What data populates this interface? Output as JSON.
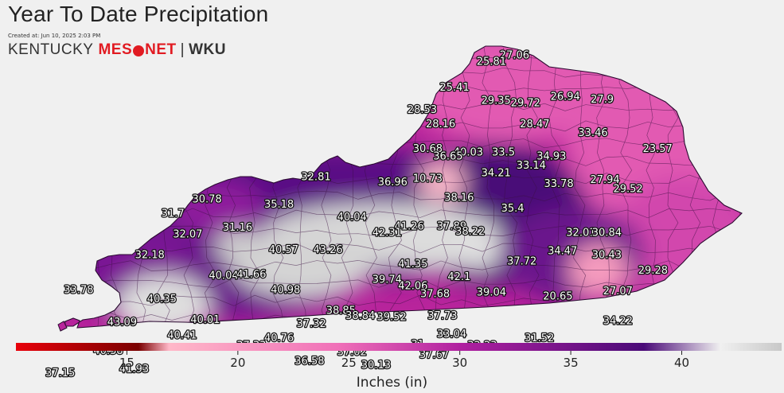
{
  "title": "Year To Date Precipitation",
  "created": "Created at: Jun 10, 2025 2:03 PM",
  "logo": {
    "kentucky": "KENTUCKY",
    "meso": "MES",
    "net": "NET",
    "separator": "|",
    "wku": "WKU"
  },
  "legend": {
    "title": "Inches (in)",
    "ticks": [
      "15",
      "20",
      "25",
      "30",
      "35",
      "40"
    ],
    "tick_values": [
      15,
      20,
      25,
      30,
      35,
      40
    ],
    "range": [
      10,
      44.5
    ],
    "colors": [
      "#e8000a",
      "#7a0000",
      "#ffb8c8",
      "#f070b8",
      "#b020a0",
      "#4a0a78",
      "#f0f0f0",
      "#c8c8c8"
    ]
  },
  "stations": [
    {
      "value": "27.06",
      "lon": -84.2,
      "lat": 39.08
    },
    {
      "value": "25.81",
      "lon": -84.45,
      "lat": 39.03
    },
    {
      "value": "25.41",
      "lon": -84.85,
      "lat": 38.83
    },
    {
      "value": "29.35",
      "lon": -84.4,
      "lat": 38.73
    },
    {
      "value": "29.72",
      "lon": -84.08,
      "lat": 38.71
    },
    {
      "value": "26.94",
      "lon": -83.65,
      "lat": 38.76
    },
    {
      "value": "27.9",
      "lon": -83.25,
      "lat": 38.74
    },
    {
      "value": "28.53",
      "lon": -85.2,
      "lat": 38.66
    },
    {
      "value": "28.16",
      "lon": -85.0,
      "lat": 38.55
    },
    {
      "value": "28.47",
      "lon": -83.98,
      "lat": 38.55
    },
    {
      "value": "33.46",
      "lon": -83.35,
      "lat": 38.48
    },
    {
      "value": "30.68",
      "lon": -85.14,
      "lat": 38.36
    },
    {
      "value": "40.03",
      "lon": -84.7,
      "lat": 38.33
    },
    {
      "value": "36.65",
      "lon": -84.92,
      "lat": 38.3
    },
    {
      "value": "33.5",
      "lon": -84.32,
      "lat": 38.33
    },
    {
      "value": "34.93",
      "lon": -83.8,
      "lat": 38.3
    },
    {
      "value": "23.57",
      "lon": -82.65,
      "lat": 38.36
    },
    {
      "value": "32.81",
      "lon": -86.35,
      "lat": 38.14
    },
    {
      "value": "36.96",
      "lon": -85.52,
      "lat": 38.1
    },
    {
      "value": "10.73",
      "lon": -85.14,
      "lat": 38.13
    },
    {
      "value": "34.21",
      "lon": -84.4,
      "lat": 38.17
    },
    {
      "value": "33.14",
      "lon": -84.02,
      "lat": 38.23
    },
    {
      "value": "33.78",
      "lon": -83.72,
      "lat": 38.09
    },
    {
      "value": "27.94",
      "lon": -83.22,
      "lat": 38.12
    },
    {
      "value": "29.52",
      "lon": -82.97,
      "lat": 38.05
    },
    {
      "value": "30.78",
      "lon": -87.53,
      "lat": 37.97
    },
    {
      "value": "35.18",
      "lon": -86.75,
      "lat": 37.93
    },
    {
      "value": "38.16",
      "lon": -84.8,
      "lat": 37.98
    },
    {
      "value": "35.4",
      "lon": -84.22,
      "lat": 37.9
    },
    {
      "value": "31.7",
      "lon": -87.9,
      "lat": 37.86
    },
    {
      "value": "40.04",
      "lon": -85.96,
      "lat": 37.83
    },
    {
      "value": "41.26",
      "lon": -85.34,
      "lat": 37.76
    },
    {
      "value": "37.89",
      "lon": -84.88,
      "lat": 37.76
    },
    {
      "value": "38.22",
      "lon": -84.68,
      "lat": 37.72
    },
    {
      "value": "32.01",
      "lon": -83.48,
      "lat": 37.71
    },
    {
      "value": "30.84",
      "lon": -83.2,
      "lat": 37.71
    },
    {
      "value": "31.16",
      "lon": -87.2,
      "lat": 37.75
    },
    {
      "value": "32.07",
      "lon": -87.74,
      "lat": 37.7
    },
    {
      "value": "42.31",
      "lon": -85.58,
      "lat": 37.71
    },
    {
      "value": "34.47",
      "lon": -83.68,
      "lat": 37.57
    },
    {
      "value": "30.43",
      "lon": -83.2,
      "lat": 37.54
    },
    {
      "value": "32.18",
      "lon": -88.15,
      "lat": 37.54
    },
    {
      "value": "40.57",
      "lon": -86.7,
      "lat": 37.58
    },
    {
      "value": "43.26",
      "lon": -86.22,
      "lat": 37.58
    },
    {
      "value": "37.72",
      "lon": -84.12,
      "lat": 37.49
    },
    {
      "value": "41.35",
      "lon": -85.3,
      "lat": 37.47
    },
    {
      "value": "29.28",
      "lon": -82.7,
      "lat": 37.42
    },
    {
      "value": "40.04",
      "lon": -87.35,
      "lat": 37.38
    },
    {
      "value": "41.66",
      "lon": -87.05,
      "lat": 37.39
    },
    {
      "value": "42.1",
      "lon": -84.8,
      "lat": 37.37
    },
    {
      "value": "39.74",
      "lon": -85.58,
      "lat": 37.35
    },
    {
      "value": "42.06",
      "lon": -85.3,
      "lat": 37.3
    },
    {
      "value": "33.78",
      "lon": -88.92,
      "lat": 37.27
    },
    {
      "value": "40.98",
      "lon": -86.68,
      "lat": 37.27
    },
    {
      "value": "37.68",
      "lon": -85.06,
      "lat": 37.24
    },
    {
      "value": "39.04",
      "lon": -84.45,
      "lat": 37.25
    },
    {
      "value": "27.07",
      "lon": -83.08,
      "lat": 37.26
    },
    {
      "value": "20.65",
      "lon": -83.73,
      "lat": 37.22
    },
    {
      "value": "40.35",
      "lon": -88.02,
      "lat": 37.2
    },
    {
      "value": "38.85",
      "lon": -86.08,
      "lat": 37.11
    },
    {
      "value": "38.84",
      "lon": -85.87,
      "lat": 37.07
    },
    {
      "value": "39.52",
      "lon": -85.53,
      "lat": 37.06
    },
    {
      "value": "37.73",
      "lon": -84.98,
      "lat": 37.07
    },
    {
      "value": "40.01",
      "lon": -87.55,
      "lat": 37.04
    },
    {
      "value": "37.32",
      "lon": -86.4,
      "lat": 37.01
    },
    {
      "value": "34.22",
      "lon": -83.08,
      "lat": 37.03
    },
    {
      "value": "43.09",
      "lon": -88.45,
      "lat": 37.02
    },
    {
      "value": "33.04",
      "lon": -84.88,
      "lat": 36.93
    },
    {
      "value": "31.52",
      "lon": -83.93,
      "lat": 36.9
    },
    {
      "value": "40.41",
      "lon": -87.8,
      "lat": 36.92
    },
    {
      "value": "40.76",
      "lon": -86.75,
      "lat": 36.9
    },
    {
      "value": "37.33",
      "lon": -87.05,
      "lat": 36.84
    },
    {
      "value": "31",
      "lon": -85.25,
      "lat": 36.85
    },
    {
      "value": "32.23",
      "lon": -84.55,
      "lat": 36.84
    },
    {
      "value": "40.38",
      "lon": -88.6,
      "lat": 36.8
    },
    {
      "value": "37.02",
      "lon": -85.96,
      "lat": 36.79
    },
    {
      "value": "37.67",
      "lon": -85.07,
      "lat": 36.77
    },
    {
      "value": "36.58",
      "lon": -86.42,
      "lat": 36.72
    },
    {
      "value": "30.13",
      "lon": -85.7,
      "lat": 36.69
    },
    {
      "value": "41.93",
      "lon": -88.32,
      "lat": 36.66
    },
    {
      "value": "37.15",
      "lon": -89.12,
      "lat": 36.63
    }
  ]
}
